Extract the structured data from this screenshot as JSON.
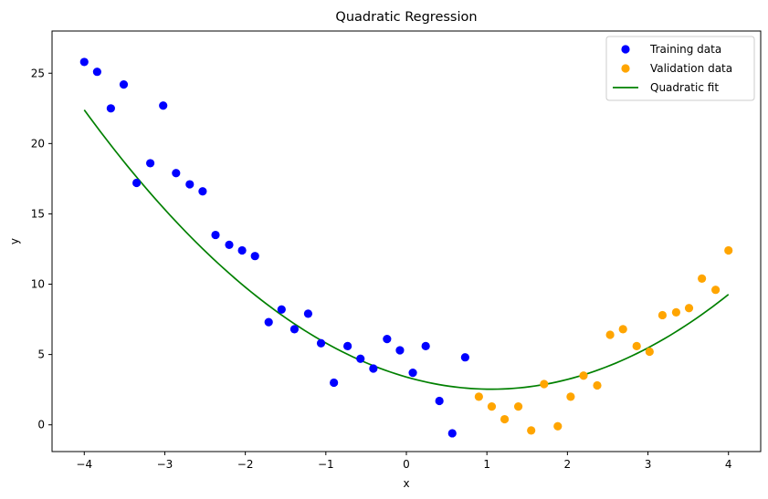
{
  "chart_data": {
    "type": "scatter",
    "title": "Quadratic Regression",
    "xlabel": "x",
    "ylabel": "y",
    "xlim": [
      -4.4,
      4.4
    ],
    "ylim": [
      -1.9,
      28.0
    ],
    "xticks": [
      -4,
      -3,
      -2,
      -1,
      0,
      1,
      2,
      3,
      4
    ],
    "xtick_labels": [
      "−4",
      "−3",
      "−2",
      "−1",
      "0",
      "1",
      "2",
      "3",
      "4"
    ],
    "yticks": [
      0,
      5,
      10,
      15,
      20,
      25
    ],
    "ytick_labels": [
      "0",
      "5",
      "10",
      "15",
      "20",
      "25"
    ],
    "grid": false,
    "legend_position": "top-right",
    "series": [
      {
        "name": "Training data",
        "kind": "scatter",
        "color": "#0000ff",
        "points": [
          [
            -4.0,
            25.8
          ],
          [
            -3.84,
            25.1
          ],
          [
            -3.67,
            22.5
          ],
          [
            -3.51,
            24.2
          ],
          [
            -3.35,
            17.2
          ],
          [
            -3.18,
            18.6
          ],
          [
            -3.02,
            22.7
          ],
          [
            -2.86,
            17.9
          ],
          [
            -2.69,
            17.1
          ],
          [
            -2.53,
            16.6
          ],
          [
            -2.37,
            13.5
          ],
          [
            -2.2,
            12.8
          ],
          [
            -2.04,
            12.4
          ],
          [
            -1.88,
            12.0
          ],
          [
            -1.71,
            7.3
          ],
          [
            -1.55,
            8.2
          ],
          [
            -1.39,
            6.8
          ],
          [
            -1.22,
            7.9
          ],
          [
            -1.06,
            5.8
          ],
          [
            -0.9,
            3.0
          ],
          [
            -0.73,
            5.6
          ],
          [
            -0.57,
            4.7
          ],
          [
            -0.41,
            4.0
          ],
          [
            -0.24,
            6.1
          ],
          [
            -0.08,
            5.3
          ],
          [
            0.08,
            3.7
          ],
          [
            0.24,
            5.6
          ],
          [
            0.41,
            1.7
          ],
          [
            0.57,
            -0.6
          ],
          [
            0.73,
            4.8
          ]
        ]
      },
      {
        "name": "Validation data",
        "kind": "scatter",
        "color": "#ffa500",
        "points": [
          [
            0.9,
            2.0
          ],
          [
            1.06,
            1.3
          ],
          [
            1.22,
            0.4
          ],
          [
            1.39,
            1.3
          ],
          [
            1.55,
            -0.4
          ],
          [
            1.71,
            2.9
          ],
          [
            1.88,
            -0.1
          ],
          [
            2.04,
            2.0
          ],
          [
            2.2,
            3.5
          ],
          [
            2.37,
            2.8
          ],
          [
            2.53,
            6.4
          ],
          [
            2.69,
            6.8
          ],
          [
            2.86,
            5.6
          ],
          [
            3.02,
            5.2
          ],
          [
            3.18,
            7.8
          ],
          [
            3.35,
            8.0
          ],
          [
            3.51,
            8.3
          ],
          [
            3.67,
            10.4
          ],
          [
            3.84,
            9.6
          ],
          [
            4.0,
            12.4
          ]
        ]
      },
      {
        "name": "Quadratic fit",
        "kind": "line",
        "color": "#008000",
        "coefficients": {
          "a": 0.777,
          "b": -1.64,
          "c": 3.4
        },
        "x_range": [
          -4.0,
          4.0
        ]
      }
    ]
  }
}
